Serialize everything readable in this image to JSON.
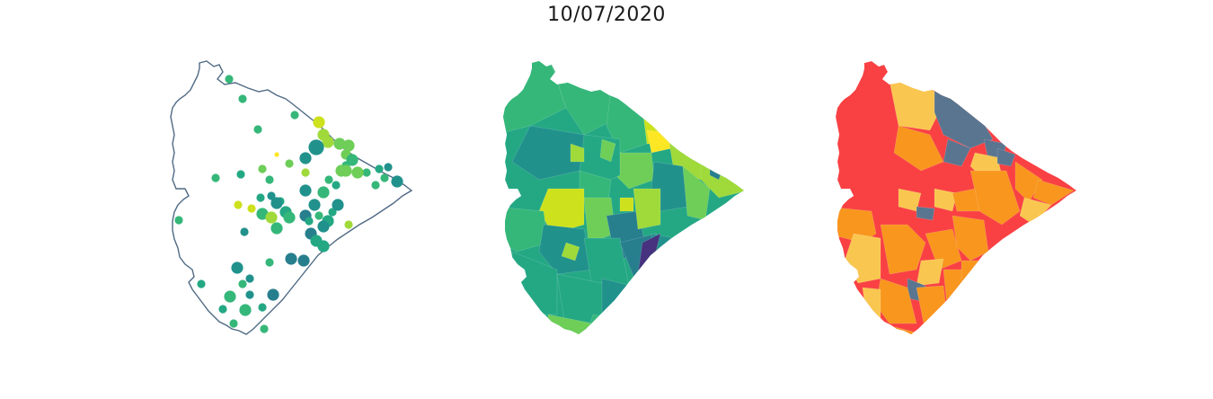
{
  "figure": {
    "title": "10/07/2020"
  },
  "colors": {
    "outline": "#4f6a84",
    "viridis": [
      "#46327e",
      "#277f8e",
      "#21918c",
      "#24a884",
      "#35b779",
      "#6ece58",
      "#9fda3a",
      "#cde11d",
      "#fde725"
    ],
    "classes": {
      "low": "#5a7590",
      "medium": "#f9c74f",
      "high": "#f8961e",
      "very_high": "#f94144"
    }
  },
  "maps": [
    {
      "name": "points",
      "type": "point-map"
    },
    {
      "name": "choropleth",
      "type": "choropleth-viridis"
    },
    {
      "name": "classes",
      "type": "choropleth-categorical"
    }
  ]
}
